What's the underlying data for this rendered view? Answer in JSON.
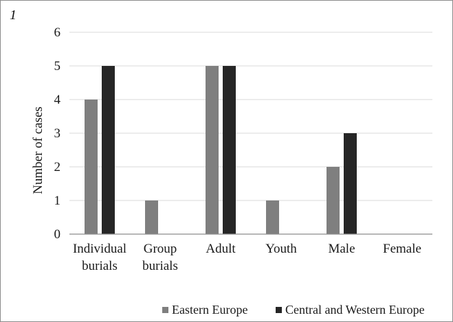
{
  "panel_label": "1",
  "chart_data": {
    "type": "bar",
    "title": "",
    "xlabel": "",
    "ylabel": "Number of cases",
    "ylim": [
      0,
      6
    ],
    "yticks": [
      0,
      1,
      2,
      3,
      4,
      5,
      6
    ],
    "grid": true,
    "legend_position": "bottom-right",
    "categories": [
      [
        "Individual",
        "burials"
      ],
      [
        "Group",
        "burials"
      ],
      [
        "Adult"
      ],
      [
        "Youth"
      ],
      [
        "Male"
      ],
      [
        "Female"
      ]
    ],
    "series": [
      {
        "name": "Eastern Europe",
        "color": "#7f7f7f",
        "values": [
          4,
          1,
          5,
          1,
          2,
          0
        ]
      },
      {
        "name": "Central and Western Europe",
        "color": "#262626",
        "values": [
          5,
          0,
          5,
          0,
          3,
          0
        ]
      }
    ]
  }
}
